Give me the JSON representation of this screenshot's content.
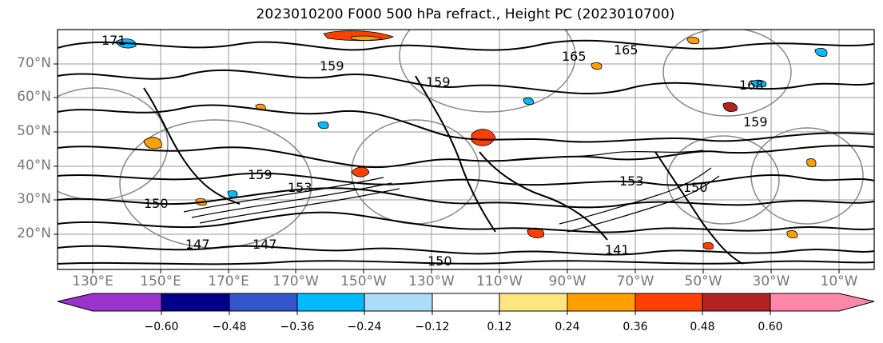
{
  "title": "2023010200 F000 500 hPa refract., Height PC (2023010700)",
  "latitude_labels": [
    "70°N",
    "60°N",
    "50°N",
    "40°N",
    "30°N",
    "20°N"
  ],
  "longitude_labels": [
    "130°E",
    "150°E",
    "170°E",
    "170°W",
    "150°W",
    "130°W",
    "110°W",
    "90°W",
    "70°W",
    "50°W",
    "30°W",
    "10°W"
  ],
  "contour_labels": [
    "171",
    "165",
    "165",
    "159",
    "159",
    "159",
    "153",
    "153",
    "150",
    "150",
    "147",
    "147",
    "141",
    "150",
    "159",
    "168"
  ],
  "colorbar": {
    "colors": [
      "#9933cc",
      "#000088",
      "#3355cc",
      "#00bbff",
      "#aaddf8",
      "#ffffff",
      "#ffe680",
      "#ffa000",
      "#ff4000",
      "#b22222",
      "#ff88aa"
    ],
    "tick_labels": [
      "−0.60",
      "−0.48",
      "−0.36",
      "−0.24",
      "−0.12",
      "0.12",
      "0.24",
      "0.36",
      "0.48",
      "0.60"
    ]
  }
}
